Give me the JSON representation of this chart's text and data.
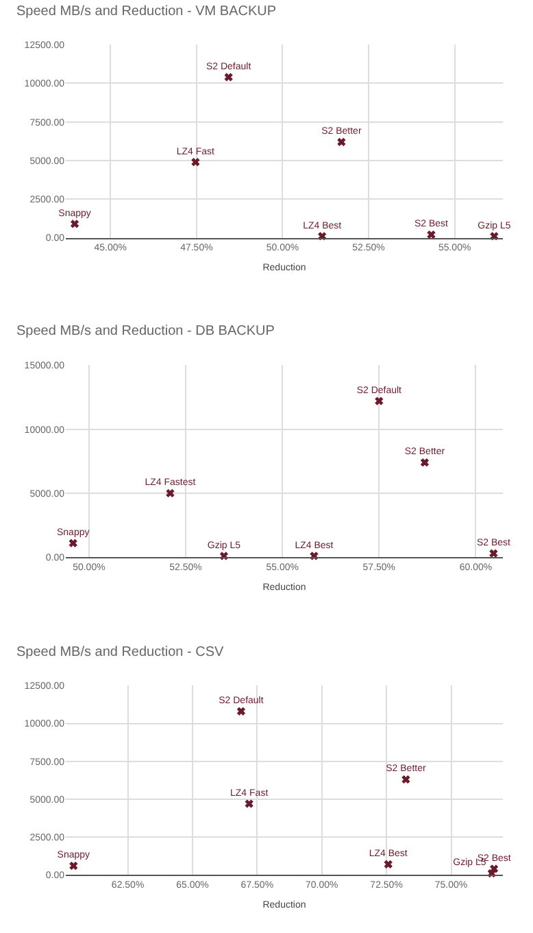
{
  "chart_data": [
    {
      "type": "scatter",
      "title": "Speed MB/s and Reduction - VM BACKUP",
      "xlabel": "Reduction",
      "marker": "cross",
      "grid": true,
      "legend": false,
      "xlim": [
        43.7,
        56.4
      ],
      "xticks": [
        {
          "value": 45,
          "label": "45.00%"
        },
        {
          "value": 47.5,
          "label": "47.50%"
        },
        {
          "value": 50,
          "label": "50.00%"
        },
        {
          "value": 52.5,
          "label": "52.50%"
        },
        {
          "value": 55,
          "label": "55.00%"
        }
      ],
      "ylim": [
        0,
        12500
      ],
      "yticks": [
        {
          "value": 0,
          "label": "0.00"
        },
        {
          "value": 2500,
          "label": "2500.00"
        },
        {
          "value": 5000,
          "label": "5000.00"
        },
        {
          "value": 7500,
          "label": "7500.00"
        },
        {
          "value": 10000,
          "label": "10000.00"
        },
        {
          "value": 12500,
          "label": "12500.00"
        }
      ],
      "series": [
        {
          "name": "Snappy",
          "color": "#6b1a2c",
          "x": [
            43.96
          ],
          "values": [
            900
          ]
        },
        {
          "name": "LZ4 Fast",
          "color": "#6b1a2c",
          "x": [
            47.47
          ],
          "values": [
            4900
          ]
        },
        {
          "name": "S2 Default",
          "color": "#6b1a2c",
          "x": [
            48.43
          ],
          "values": [
            10400
          ]
        },
        {
          "name": "S2 Better",
          "color": "#6b1a2c",
          "x": [
            51.71
          ],
          "values": [
            6200
          ]
        },
        {
          "name": "LZ4 Best",
          "color": "#6b1a2c",
          "x": [
            51.15
          ],
          "values": [
            100
          ]
        },
        {
          "name": "S2 Best",
          "color": "#6b1a2c",
          "x": [
            54.32
          ],
          "values": [
            200
          ]
        },
        {
          "name": "Gzip L5",
          "color": "#6b1a2c",
          "x": [
            56.15
          ],
          "values": [
            100
          ]
        }
      ]
    },
    {
      "type": "scatter",
      "title": "Speed MB/s and Reduction - DB BACKUP",
      "xlabel": "Reduction",
      "marker": "cross",
      "grid": true,
      "legend": false,
      "xlim": [
        49.4,
        60.7
      ],
      "xticks": [
        {
          "value": 50,
          "label": "50.00%"
        },
        {
          "value": 52.5,
          "label": "52.50%"
        },
        {
          "value": 55,
          "label": "55.00%"
        },
        {
          "value": 57.5,
          "label": "57.50%"
        },
        {
          "value": 60,
          "label": "60.00%"
        }
      ],
      "ylim": [
        0,
        15000
      ],
      "yticks": [
        {
          "value": 0,
          "label": "0.00"
        },
        {
          "value": 5000,
          "label": "5000.00"
        },
        {
          "value": 10000,
          "label": "10000.00"
        },
        {
          "value": 15000,
          "label": "15000.00"
        }
      ],
      "series": [
        {
          "name": "Snappy",
          "color": "#6b1a2c",
          "x": [
            49.59
          ],
          "values": [
            1100
          ]
        },
        {
          "name": "LZ4 Fastest",
          "color": "#6b1a2c",
          "x": [
            52.1
          ],
          "values": [
            5000
          ]
        },
        {
          "name": "Gzip L5",
          "color": "#6b1a2c",
          "x": [
            53.49
          ],
          "values": [
            100
          ]
        },
        {
          "name": "LZ4 Best",
          "color": "#6b1a2c",
          "x": [
            55.82
          ],
          "values": [
            100
          ]
        },
        {
          "name": "S2 Default",
          "color": "#6b1a2c",
          "x": [
            57.5
          ],
          "values": [
            12200
          ]
        },
        {
          "name": "S2 Better",
          "color": "#6b1a2c",
          "x": [
            58.68
          ],
          "values": [
            7400
          ]
        },
        {
          "name": "S2 Best",
          "color": "#6b1a2c",
          "x": [
            60.46
          ],
          "values": [
            300
          ]
        }
      ]
    },
    {
      "type": "scatter",
      "title": "Speed MB/s and Reduction - CSV",
      "xlabel": "Reduction",
      "marker": "cross",
      "grid": true,
      "legend": false,
      "xlim": [
        60.1,
        77.0
      ],
      "xticks": [
        {
          "value": 62.5,
          "label": "62.50%"
        },
        {
          "value": 65,
          "label": "65.00%"
        },
        {
          "value": 67.5,
          "label": "67.50%"
        },
        {
          "value": 70,
          "label": "70.00%"
        },
        {
          "value": 72.5,
          "label": "72.50%"
        },
        {
          "value": 75,
          "label": "75.00%"
        }
      ],
      "ylim": [
        0,
        12500
      ],
      "yticks": [
        {
          "value": 0,
          "label": "0.00"
        },
        {
          "value": 2500,
          "label": "2500.00"
        },
        {
          "value": 5000,
          "label": "5000.00"
        },
        {
          "value": 7500,
          "label": "7500.00"
        },
        {
          "value": 10000,
          "label": "10000.00"
        },
        {
          "value": 12500,
          "label": "12500.00"
        }
      ],
      "series": [
        {
          "name": "Snappy",
          "color": "#6b1a2c",
          "x": [
            60.4
          ],
          "values": [
            600
          ]
        },
        {
          "name": "S2 Default",
          "color": "#6b1a2c",
          "x": [
            66.88
          ],
          "values": [
            10800
          ]
        },
        {
          "name": "LZ4 Fast",
          "color": "#6b1a2c",
          "x": [
            67.19
          ],
          "values": [
            4700
          ]
        },
        {
          "name": "S2 Better",
          "color": "#6b1a2c",
          "x": [
            73.25
          ],
          "values": [
            6300
          ]
        },
        {
          "name": "LZ4 Best",
          "color": "#6b1a2c",
          "x": [
            72.57
          ],
          "values": [
            700
          ]
        },
        {
          "name": "S2 Best",
          "color": "#6b1a2c",
          "x": [
            76.66
          ],
          "values": [
            400
          ]
        },
        {
          "name": "Gzip L5",
          "color": "#6b1a2c",
          "x": [
            76.57
          ],
          "values": [
            100
          ]
        }
      ]
    }
  ]
}
